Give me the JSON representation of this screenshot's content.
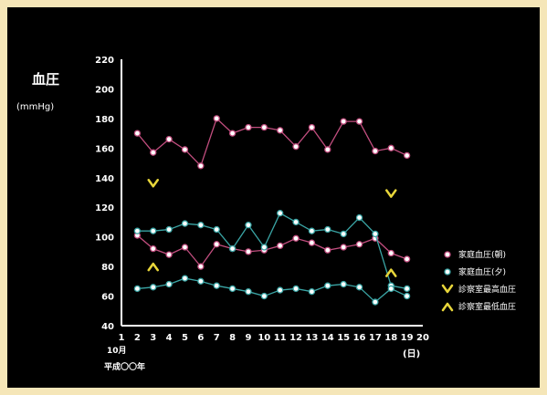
{
  "chart_data": {
    "type": "line",
    "ylabel": "血圧",
    "yunit": "(mmHg)",
    "ylim": [
      40,
      220
    ],
    "yticks": [
      40,
      60,
      80,
      100,
      120,
      140,
      160,
      180,
      200,
      220
    ],
    "xlim": [
      1,
      20
    ],
    "xticks": [
      1,
      2,
      3,
      4,
      5,
      6,
      7,
      8,
      9,
      10,
      11,
      12,
      13,
      14,
      15,
      16,
      17,
      18,
      19,
      20
    ],
    "x_month_label": "10月",
    "x_era_label": "平成〇〇年",
    "xunit": "(日)",
    "grid": false,
    "legend_position": "right",
    "series": [
      {
        "name": "家庭血圧(朝)",
        "role": "morning-high",
        "color": "#c24e7f",
        "marker": "circle",
        "x": [
          2,
          3,
          4,
          5,
          6,
          7,
          8,
          9,
          10,
          11,
          12,
          13,
          14,
          15,
          16,
          17,
          18,
          19
        ],
        "values": [
          170,
          157,
          166,
          159,
          148,
          180,
          170,
          174,
          174,
          172,
          161,
          174,
          159,
          178,
          178,
          158,
          160,
          155
        ]
      },
      {
        "name": "家庭血圧(朝)",
        "role": "morning-low",
        "color": "#c24e7f",
        "marker": "circle",
        "x": [
          2,
          3,
          4,
          5,
          6,
          7,
          8,
          9,
          10,
          11,
          12,
          13,
          14,
          15,
          16,
          17,
          18,
          19
        ],
        "values": [
          101,
          92,
          88,
          93,
          80,
          95,
          92,
          90,
          91,
          94,
          99,
          96,
          91,
          93,
          95,
          99,
          89,
          85
        ]
      },
      {
        "name": "家庭血圧(夕)",
        "role": "evening-high",
        "color": "#3aa5a5",
        "marker": "circle",
        "x": [
          2,
          3,
          4,
          5,
          6,
          7,
          8,
          9,
          10,
          11,
          12,
          13,
          14,
          15,
          16,
          17,
          18,
          19
        ],
        "values": [
          104,
          104,
          105,
          109,
          108,
          105,
          92,
          108,
          93,
          116,
          110,
          104,
          105,
          102,
          113,
          102,
          67,
          65
        ]
      },
      {
        "name": "家庭血圧(夕)",
        "role": "evening-low",
        "color": "#3aa5a5",
        "marker": "circle",
        "x": [
          2,
          3,
          4,
          5,
          6,
          7,
          8,
          9,
          10,
          11,
          12,
          13,
          14,
          15,
          16,
          17,
          18,
          19
        ],
        "values": [
          65,
          66,
          68,
          72,
          70,
          67,
          65,
          63,
          60,
          64,
          65,
          63,
          67,
          68,
          66,
          56,
          65,
          60
        ]
      },
      {
        "name": "診察室最高血圧",
        "color": "#e8d63a",
        "marker": "v",
        "x": [
          3,
          18
        ],
        "values": [
          136,
          129
        ]
      },
      {
        "name": "診察室最低血圧",
        "color": "#e8d63a",
        "marker": "caret-up",
        "x": [
          3,
          18
        ],
        "values": [
          80,
          76
        ]
      }
    ],
    "legend": [
      {
        "label": "家庭血圧(朝)",
        "color": "#c24e7f",
        "marker": "circle"
      },
      {
        "label": "家庭血圧(夕)",
        "color": "#3aa5a5",
        "marker": "circle"
      },
      {
        "label": "診察室最高血圧",
        "color": "#e8d63a",
        "marker": "v"
      },
      {
        "label": "診察室最低血圧",
        "color": "#e8d63a",
        "marker": "caret-up"
      }
    ]
  }
}
